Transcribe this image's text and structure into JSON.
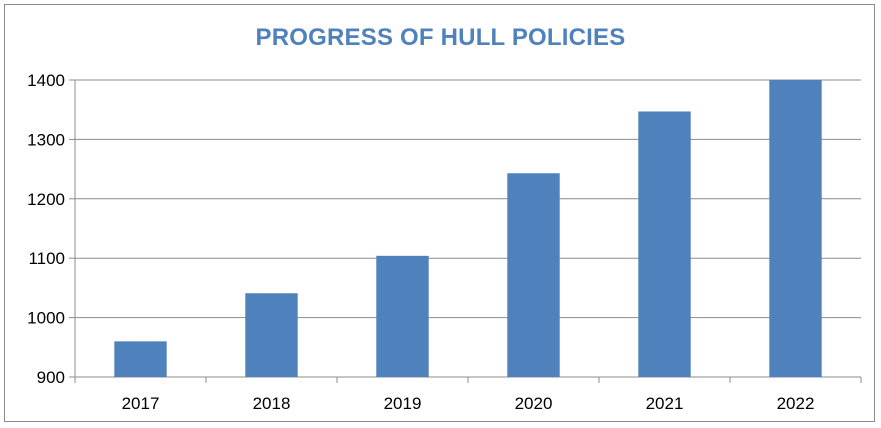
{
  "chart_data": {
    "type": "bar",
    "title": "PROGRESS OF HULL POLICIES",
    "xlabel": "",
    "ylabel": "",
    "categories": [
      "2017",
      "2018",
      "2019",
      "2020",
      "2021",
      "2022"
    ],
    "values": [
      960,
      1041,
      1104,
      1243,
      1347,
      1400
    ],
    "ylim": [
      900,
      1400
    ],
    "yticks": [
      "900",
      "1000",
      "1100",
      "1200",
      "1300",
      "1400"
    ],
    "grid": true,
    "legend": "none",
    "bar_color": "#4f81bd",
    "grid_color": "#8c8c8c",
    "title_color": "#4f81bd"
  }
}
